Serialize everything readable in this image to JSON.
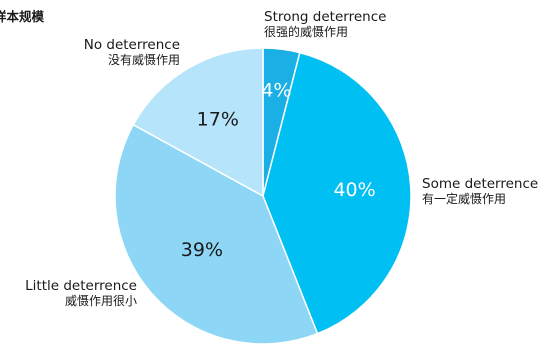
{
  "title": "样本规模",
  "chart_data": {
    "type": "pie",
    "start_angle_deg": 0,
    "direction": "clockwise",
    "slices": [
      {
        "label_en": "Strong deterrence",
        "label_zh": "很强的威慑作用",
        "value": 4,
        "value_label": "4%",
        "color": "#1ab0e6",
        "value_label_color": "#ffffff"
      },
      {
        "label_en": "Some deterrence",
        "label_zh": "有一定威慑作用",
        "value": 40,
        "value_label": "40%",
        "color": "#00bff3",
        "value_label_color": "#ffffff"
      },
      {
        "label_en": "Little deterrence",
        "label_zh": "威慑作用很小",
        "value": 39,
        "value_label": "39%",
        "color": "#8dd6f6",
        "value_label_color": "#1a1a1a"
      },
      {
        "label_en": "No deterrence",
        "label_zh": "没有威慑作用",
        "value": 17,
        "value_label": "17%",
        "color": "#b6e5fb",
        "value_label_color": "#1a1a1a"
      }
    ]
  }
}
